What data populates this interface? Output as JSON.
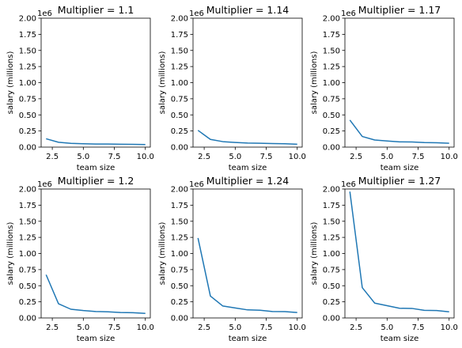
{
  "colors": {
    "line": "#1f77b4",
    "axes": "#000000",
    "background": "#ffffff"
  },
  "chart_data": [
    {
      "type": "line",
      "title": "Multiplier = 1.1",
      "xlabel": "team size",
      "ylabel": "salary (millions)",
      "offset_text": "1e6",
      "xlim": [
        1.6,
        10.4
      ],
      "ylim": [
        0,
        2000000
      ],
      "x_ticks": [
        2.5,
        5.0,
        7.5,
        10.0
      ],
      "x_tick_labels": [
        "2.5",
        "5.0",
        "7.5",
        "10.0"
      ],
      "y_ticks": [
        0,
        250000,
        500000,
        750000,
        1000000,
        1250000,
        1500000,
        1750000,
        2000000
      ],
      "y_tick_labels": [
        "0.00",
        "0.25",
        "0.50",
        "0.75",
        "1.00",
        "1.25",
        "1.50",
        "1.75",
        "2.00"
      ],
      "x": [
        2,
        3,
        4,
        5,
        6,
        7,
        8,
        9,
        10
      ],
      "y": [
        130000,
        75000,
        58000,
        52000,
        48000,
        47000,
        44000,
        43000,
        40000
      ]
    },
    {
      "type": "line",
      "title": "Multiplier = 1.14",
      "xlabel": "team size",
      "ylabel": "salary (millions)",
      "offset_text": "1e6",
      "xlim": [
        1.6,
        10.4
      ],
      "ylim": [
        0,
        2000000
      ],
      "x_ticks": [
        2.5,
        5.0,
        7.5,
        10.0
      ],
      "x_tick_labels": [
        "2.5",
        "5.0",
        "7.5",
        "10.0"
      ],
      "y_ticks": [
        0,
        250000,
        500000,
        750000,
        1000000,
        1250000,
        1500000,
        1750000,
        2000000
      ],
      "y_tick_labels": [
        "0.00",
        "0.25",
        "0.50",
        "0.75",
        "1.00",
        "1.25",
        "1.50",
        "1.75",
        "2.00"
      ],
      "x": [
        2,
        3,
        4,
        5,
        6,
        7,
        8,
        9,
        10
      ],
      "y": [
        260000,
        120000,
        85000,
        72000,
        63000,
        60000,
        55000,
        52000,
        45000
      ]
    },
    {
      "type": "line",
      "title": "Multiplier = 1.17",
      "xlabel": "team size",
      "ylabel": "salary (millions)",
      "offset_text": "1e6",
      "xlim": [
        1.6,
        10.4
      ],
      "ylim": [
        0,
        2000000
      ],
      "x_ticks": [
        2.5,
        5.0,
        7.5,
        10.0
      ],
      "x_tick_labels": [
        "2.5",
        "5.0",
        "7.5",
        "10.0"
      ],
      "y_ticks": [
        0,
        250000,
        500000,
        750000,
        1000000,
        1250000,
        1500000,
        1750000,
        2000000
      ],
      "y_tick_labels": [
        "0.00",
        "0.25",
        "0.50",
        "0.75",
        "1.00",
        "1.25",
        "1.50",
        "1.75",
        "2.00"
      ],
      "x": [
        2,
        3,
        4,
        5,
        6,
        7,
        8,
        9,
        10
      ],
      "y": [
        420000,
        165000,
        110000,
        95000,
        82000,
        80000,
        70000,
        68000,
        60000
      ]
    },
    {
      "type": "line",
      "title": "Multiplier = 1.2",
      "xlabel": "team size",
      "ylabel": "salary (millions)",
      "offset_text": "1e6",
      "xlim": [
        1.6,
        10.4
      ],
      "ylim": [
        0,
        2000000
      ],
      "x_ticks": [
        2.5,
        5.0,
        7.5,
        10.0
      ],
      "x_tick_labels": [
        "2.5",
        "5.0",
        "7.5",
        "10.0"
      ],
      "y_ticks": [
        0,
        250000,
        500000,
        750000,
        1000000,
        1250000,
        1500000,
        1750000,
        2000000
      ],
      "y_tick_labels": [
        "0.00",
        "0.25",
        "0.50",
        "0.75",
        "1.00",
        "1.25",
        "1.50",
        "1.75",
        "2.00"
      ],
      "x": [
        2,
        3,
        4,
        5,
        6,
        7,
        8,
        9,
        10
      ],
      "y": [
        670000,
        220000,
        135000,
        115000,
        100000,
        95000,
        85000,
        82000,
        70000
      ]
    },
    {
      "type": "line",
      "title": "Multiplier = 1.24",
      "xlabel": "team size",
      "ylabel": "salary (millions)",
      "offset_text": "1e6",
      "xlim": [
        1.6,
        10.4
      ],
      "ylim": [
        0,
        2000000
      ],
      "x_ticks": [
        2.5,
        5.0,
        7.5,
        10.0
      ],
      "x_tick_labels": [
        "2.5",
        "5.0",
        "7.5",
        "10.0"
      ],
      "y_ticks": [
        0,
        250000,
        500000,
        750000,
        1000000,
        1250000,
        1500000,
        1750000,
        2000000
      ],
      "y_tick_labels": [
        "0.00",
        "0.25",
        "0.50",
        "0.75",
        "1.00",
        "1.25",
        "1.50",
        "1.75",
        "2.00"
      ],
      "x": [
        2,
        3,
        4,
        5,
        6,
        7,
        8,
        9,
        10
      ],
      "y": [
        1240000,
        340000,
        185000,
        155000,
        125000,
        120000,
        100000,
        98000,
        85000
      ]
    },
    {
      "type": "line",
      "title": "Multiplier = 1.27",
      "xlabel": "team size",
      "ylabel": "salary (millions)",
      "offset_text": "1e6",
      "xlim": [
        1.6,
        10.4
      ],
      "ylim": [
        0,
        2000000
      ],
      "x_ticks": [
        2.5,
        5.0,
        7.5,
        10.0
      ],
      "x_tick_labels": [
        "2.5",
        "5.0",
        "7.5",
        "10.0"
      ],
      "y_ticks": [
        0,
        250000,
        500000,
        750000,
        1000000,
        1250000,
        1500000,
        1750000,
        2000000
      ],
      "y_tick_labels": [
        "0.00",
        "0.25",
        "0.50",
        "0.75",
        "1.00",
        "1.25",
        "1.50",
        "1.75",
        "2.00"
      ],
      "x": [
        2,
        3,
        4,
        5,
        6,
        7,
        8,
        9,
        10
      ],
      "y": [
        1960000,
        470000,
        230000,
        190000,
        150000,
        148000,
        118000,
        115000,
        95000
      ]
    }
  ]
}
